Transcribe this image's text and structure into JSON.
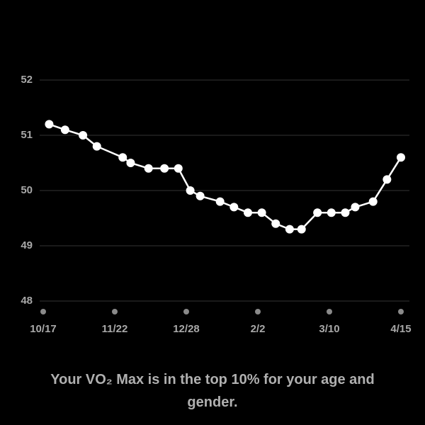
{
  "chart_data": {
    "type": "line",
    "x": [
      3,
      11,
      20,
      27,
      40,
      44,
      53,
      61,
      68,
      74,
      79,
      89,
      96,
      103,
      110,
      117,
      124,
      130,
      138,
      145,
      152,
      157,
      166,
      173,
      180
    ],
    "values": [
      51.2,
      51.1,
      51.0,
      50.8,
      50.6,
      50.5,
      50.4,
      50.4,
      50.4,
      50.0,
      49.9,
      49.8,
      49.7,
      49.6,
      49.6,
      49.4,
      49.3,
      49.3,
      49.6,
      49.6,
      49.6,
      49.7,
      49.8,
      50.2,
      50.6
    ],
    "color": "#ffffff",
    "xlim": [
      0,
      180
    ],
    "xticks": [
      {
        "value": 0,
        "label": "10/17"
      },
      {
        "value": 36,
        "label": "11/22"
      },
      {
        "value": 72,
        "label": "12/28"
      },
      {
        "value": 108,
        "label": "2/2"
      },
      {
        "value": 144,
        "label": "3/10"
      },
      {
        "value": 180,
        "label": "4/15"
      }
    ],
    "ylim": [
      48,
      52
    ],
    "yticks": [
      48,
      49,
      50,
      51,
      52
    ],
    "grid": true
  },
  "caption": "Your VO₂ Max is in the top 10% for your age and gender."
}
